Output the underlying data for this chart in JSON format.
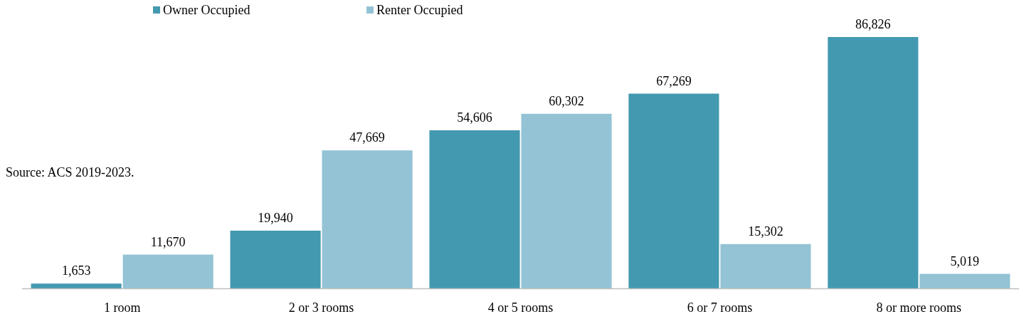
{
  "chart_data": {
    "type": "bar",
    "categories": [
      "1 room",
      "2 or 3 rooms",
      "4 or 5 rooms",
      "6 or 7 rooms",
      "8 or more rooms"
    ],
    "series": [
      {
        "name": "Owner Occupied",
        "color": "#4399b0",
        "values": [
          1653,
          19940,
          54606,
          67269,
          86826
        ],
        "value_labels": [
          "1,653",
          "19,940",
          "54,606",
          "67,269",
          "86,826"
        ]
      },
      {
        "name": "Renter Occupied",
        "color": "#93c3d4",
        "values": [
          11670,
          47669,
          60302,
          15302,
          5019
        ],
        "value_labels": [
          "11,670",
          "47,669",
          "60,302",
          "15,302",
          "5,019"
        ]
      }
    ],
    "legend": "top left",
    "annotations": [
      "Source: ACS 2019-2023."
    ]
  }
}
